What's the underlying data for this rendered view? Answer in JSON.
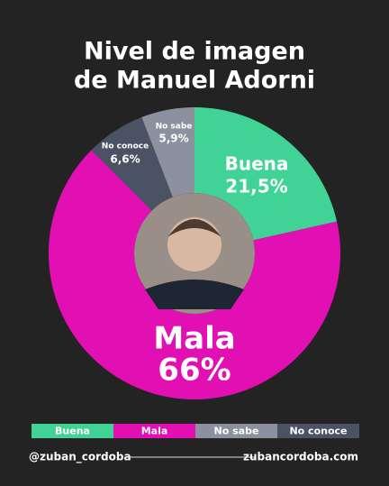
{
  "chart_data": {
    "type": "donut",
    "title": [
      "Nivel de imagen",
      "de  Manuel Adorni"
    ],
    "categories": [
      "Buena",
      "Mala",
      "No conoce",
      "No sabe"
    ],
    "values": [
      21.5,
      66,
      6.6,
      5.9
    ],
    "value_labels": [
      "21,5%",
      "66%",
      "6,6%",
      "5,9%"
    ],
    "colors": [
      "#41d296",
      "#e20fb3",
      "#4b5264",
      "#8c91a0"
    ]
  },
  "footer": {
    "left": "@zuban_cordoba",
    "right": "zubancordoba.com"
  }
}
